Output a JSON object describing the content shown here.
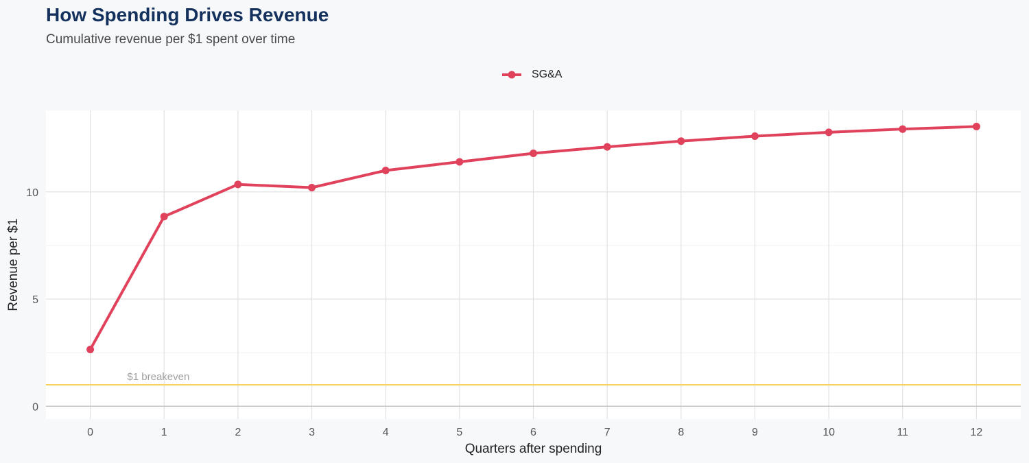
{
  "chart_data": {
    "type": "line",
    "title": "How Spending Drives Revenue",
    "subtitle": "Cumulative revenue per $1 spent over time",
    "xlabel": "Quarters after spending",
    "ylabel": "Revenue per $1",
    "x": [
      0,
      1,
      2,
      3,
      4,
      5,
      6,
      7,
      8,
      9,
      10,
      11,
      12
    ],
    "xticks": [
      "0",
      "1",
      "2",
      "3",
      "4",
      "5",
      "6",
      "7",
      "8",
      "9",
      "10",
      "11",
      "12"
    ],
    "yticks": [
      "0",
      "5",
      "10"
    ],
    "ytick_values": [
      0,
      5,
      10
    ],
    "xlim": [
      -0.6,
      12.6
    ],
    "ylim": [
      -0.6,
      13.8
    ],
    "legend_position": "top-center",
    "series": [
      {
        "name": "SG&A",
        "color": "#e0425c",
        "values": [
          2.65,
          8.85,
          10.35,
          10.2,
          11.0,
          11.4,
          11.8,
          12.1,
          12.37,
          12.6,
          12.78,
          12.93,
          13.05
        ]
      }
    ],
    "reference_line": {
      "value": 1,
      "label": "$1 breakeven",
      "color": "#f5d35c"
    },
    "grid": true
  }
}
